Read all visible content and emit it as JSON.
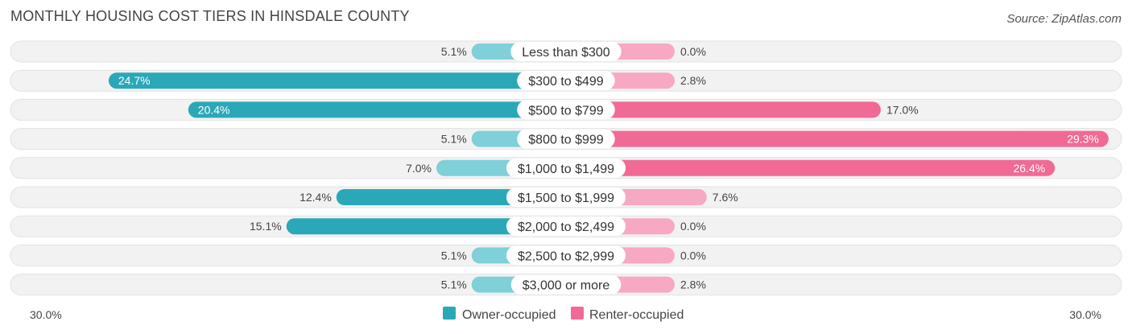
{
  "title": "MONTHLY HOUSING COST TIERS IN HINSDALE COUNTY",
  "source": "Source: ZipAtlas.com",
  "colors": {
    "owner": "#2aa8b8",
    "owner_light": "#7fd0d8",
    "renter": "#f06a95",
    "renter_light": "#f7a8c3",
    "row_bg": "#efefef"
  },
  "chart_data": {
    "type": "bar",
    "orientation": "horizontal-diverging",
    "title": "MONTHLY HOUSING COST TIERS IN HINSDALE COUNTY",
    "categories": [
      "Less than $300",
      "$300 to $499",
      "$500 to $799",
      "$800 to $999",
      "$1,000 to $1,499",
      "$1,500 to $1,999",
      "$2,000 to $2,499",
      "$2,500 to $2,999",
      "$3,000 or more"
    ],
    "series": [
      {
        "name": "Owner-occupied",
        "values": [
          5.1,
          24.7,
          20.4,
          5.1,
          7.0,
          12.4,
          15.1,
          5.1,
          5.1
        ],
        "labels": [
          "5.1%",
          "24.7%",
          "20.4%",
          "5.1%",
          "7.0%",
          "12.4%",
          "15.1%",
          "5.1%",
          "5.1%"
        ]
      },
      {
        "name": "Renter-occupied",
        "values": [
          0.0,
          2.8,
          17.0,
          29.3,
          26.4,
          7.6,
          0.0,
          0.0,
          2.8
        ],
        "labels": [
          "0.0%",
          "2.8%",
          "17.0%",
          "29.3%",
          "26.4%",
          "7.6%",
          "0.0%",
          "0.0%",
          "2.8%"
        ]
      }
    ],
    "xlim": [
      -30,
      30
    ],
    "axis_left_label": "30.0%",
    "axis_right_label": "30.0%",
    "legend": [
      "Owner-occupied",
      "Renter-occupied"
    ],
    "legend_position": "bottom-center"
  }
}
